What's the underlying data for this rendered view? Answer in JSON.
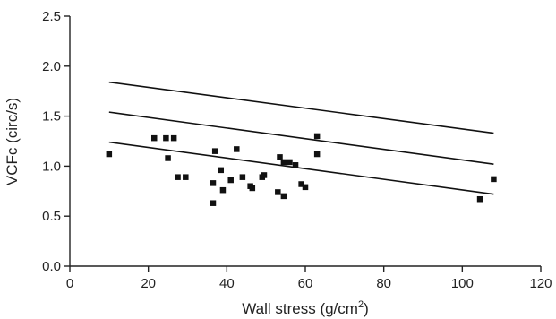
{
  "chart_data": {
    "type": "scatter",
    "xlabel_main": "Wall stress (g/cm",
    "xlabel_sup": "2",
    "xlabel_tail": ")",
    "ylabel": "VCFc (circ/s)",
    "xlim": [
      0,
      120
    ],
    "ylim": [
      0.0,
      2.5
    ],
    "x_ticks": [
      0,
      20,
      40,
      60,
      80,
      100,
      120
    ],
    "x_tick_labels": [
      "0",
      "20",
      "40",
      "60",
      "80",
      "100",
      "120"
    ],
    "y_ticks": [
      0.0,
      0.5,
      1.0,
      1.5,
      2.0,
      2.5
    ],
    "y_tick_labels": [
      "0.0",
      "0.5",
      "1.0",
      "1.5",
      "2.0",
      "2.5"
    ],
    "grid": false,
    "reference_lines": [
      {
        "x": [
          10,
          108
        ],
        "y": [
          1.84,
          1.33
        ]
      },
      {
        "x": [
          10,
          108
        ],
        "y": [
          1.54,
          1.02
        ]
      },
      {
        "x": [
          10,
          108
        ],
        "y": [
          1.24,
          0.72
        ]
      }
    ],
    "points": [
      {
        "x": 10,
        "y": 1.12
      },
      {
        "x": 21.5,
        "y": 1.28
      },
      {
        "x": 24.5,
        "y": 1.28
      },
      {
        "x": 25,
        "y": 1.08
      },
      {
        "x": 26.5,
        "y": 1.28
      },
      {
        "x": 27.5,
        "y": 0.89
      },
      {
        "x": 29.5,
        "y": 0.89
      },
      {
        "x": 36.5,
        "y": 0.83
      },
      {
        "x": 36.5,
        "y": 0.63
      },
      {
        "x": 37,
        "y": 1.15
      },
      {
        "x": 38.5,
        "y": 0.96
      },
      {
        "x": 39,
        "y": 0.76
      },
      {
        "x": 41,
        "y": 0.86
      },
      {
        "x": 42.5,
        "y": 1.17
      },
      {
        "x": 44,
        "y": 0.89
      },
      {
        "x": 46,
        "y": 0.8
      },
      {
        "x": 46.5,
        "y": 0.78
      },
      {
        "x": 49,
        "y": 0.89
      },
      {
        "x": 49.5,
        "y": 0.91
      },
      {
        "x": 53,
        "y": 0.74
      },
      {
        "x": 53.5,
        "y": 1.09
      },
      {
        "x": 54.5,
        "y": 0.7
      },
      {
        "x": 54.5,
        "y": 1.04
      },
      {
        "x": 56,
        "y": 1.04
      },
      {
        "x": 57.5,
        "y": 1.01
      },
      {
        "x": 59,
        "y": 0.82
      },
      {
        "x": 60,
        "y": 0.79
      },
      {
        "x": 63,
        "y": 1.3
      },
      {
        "x": 63,
        "y": 1.12
      },
      {
        "x": 104.5,
        "y": 0.67
      },
      {
        "x": 108,
        "y": 0.87
      }
    ]
  }
}
